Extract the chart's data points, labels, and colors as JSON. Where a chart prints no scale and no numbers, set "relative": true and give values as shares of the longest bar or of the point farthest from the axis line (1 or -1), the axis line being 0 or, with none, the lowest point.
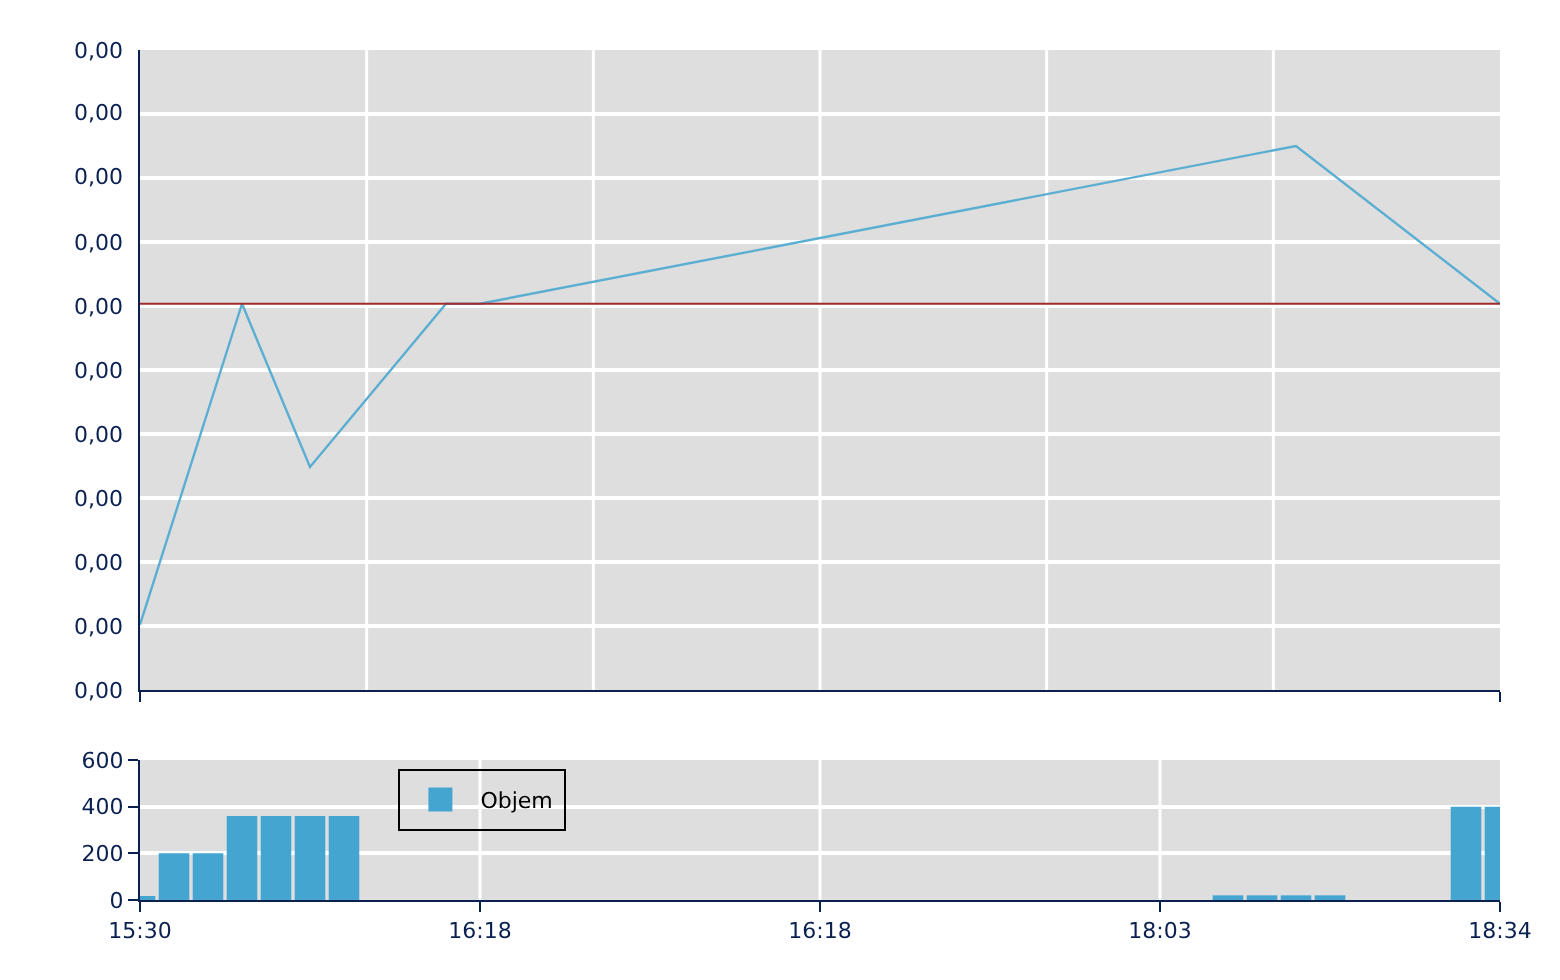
{
  "chart_data": [
    {
      "type": "line",
      "relative": true,
      "categories": [
        null,
        null,
        null,
        null,
        null,
        null,
        null,
        null,
        null,
        null,
        null,
        null,
        null,
        null,
        null,
        null,
        null,
        null,
        null,
        null,
        null,
        null,
        null,
        null,
        null,
        null,
        null,
        null,
        null,
        null,
        null,
        null,
        null,
        null,
        null,
        null,
        null,
        null,
        null,
        null,
        null
      ],
      "series": [
        {
          "color": "#5aaed2",
          "values": [
            0.12,
            null,
            null,
            0.71,
            null,
            0.41,
            null,
            null,
            null,
            0.71,
            0.71,
            null,
            null,
            null,
            null,
            null,
            null,
            null,
            null,
            null,
            null,
            null,
            null,
            null,
            null,
            null,
            null,
            null,
            null,
            null,
            null,
            null,
            null,
            null,
            1,
            null,
            null,
            null,
            null,
            null,
            0.71
          ]
        }
      ],
      "ref_lines": [
        {
          "axis": "y",
          "value": 0.71,
          "color": "#a52a2a"
        }
      ],
      "annotations": [
        "0,00",
        "0,00",
        "0,00",
        "0,00",
        "0,00",
        "0,00",
        "0,00",
        "0,00",
        "0,00",
        "0,00",
        "0,00"
      ],
      "grid": true
    },
    {
      "type": "bar",
      "categories": [
        "15:30",
        null,
        null,
        null,
        null,
        null,
        null,
        null,
        null,
        null,
        "16:18",
        null,
        null,
        null,
        null,
        null,
        null,
        null,
        null,
        null,
        "16:18",
        null,
        null,
        null,
        null,
        null,
        null,
        null,
        null,
        null,
        "18:03",
        null,
        null,
        null,
        null,
        null,
        null,
        null,
        null,
        null,
        "18:34"
      ],
      "series": [
        {
          "name": "Objem",
          "color": "#44a6d0",
          "values": [
            10,
            200,
            200,
            360,
            360,
            360,
            360,
            null,
            null,
            null,
            null,
            null,
            null,
            null,
            null,
            null,
            null,
            null,
            null,
            null,
            null,
            null,
            null,
            null,
            null,
            null,
            null,
            null,
            null,
            null,
            null,
            null,
            20,
            20,
            20,
            20,
            null,
            null,
            null,
            400,
            400
          ]
        }
      ],
      "ylim": [
        0,
        600
      ],
      "yticks": [
        0,
        200,
        400,
        600
      ],
      "grid": true,
      "legend": "top left"
    }
  ]
}
